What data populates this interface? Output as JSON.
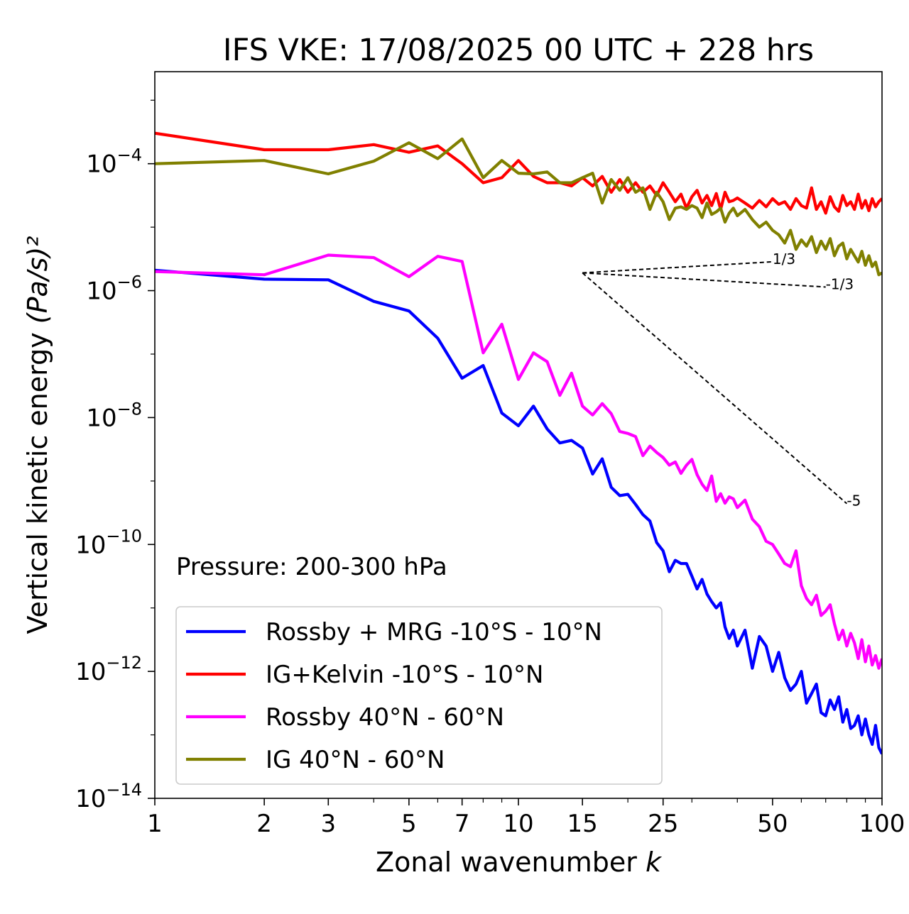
{
  "chart_data": {
    "type": "line",
    "title": "IFS VKE: 17/08/2025 00 UTC + 228 hrs",
    "xlabel": "Zonal wavenumber",
    "xlabel_var": "k",
    "ylabel": "Vertical kinetic energy",
    "ylabel_units": "(Pa/s)²",
    "xscale": "log",
    "yscale": "log",
    "xlim": [
      1,
      100
    ],
    "ylim_exp": [
      -14,
      -2.55
    ],
    "x_ticks": [
      1,
      2,
      3,
      5,
      7,
      10,
      15,
      25,
      50,
      100
    ],
    "x_tick_labels": [
      "1",
      "2",
      "3",
      "5",
      "7",
      "10",
      "15",
      "25",
      "50",
      "100"
    ],
    "y_ticks_exp": [
      -14,
      -12,
      -10,
      -8,
      -6,
      -4
    ],
    "y_tick_labels": [
      "10^-14",
      "10^-12",
      "10^-10",
      "10^-8",
      "10^-6",
      "10^-4"
    ],
    "annotation": "Pressure: 200-300 hPa",
    "legend_position": "lower-left",
    "series": [
      {
        "name": "Rossby + MRG -10°S - 10°N",
        "color": "#0000ff",
        "x": [
          1,
          2,
          3,
          4,
          5,
          6,
          7,
          8,
          9,
          10,
          11,
          12,
          13,
          14,
          15,
          16,
          17,
          18,
          19,
          20,
          21,
          22,
          23,
          24,
          25,
          26,
          27,
          28,
          29,
          30,
          31,
          32,
          33,
          34,
          35,
          36,
          37,
          38,
          39,
          40,
          42,
          44,
          46,
          48,
          50,
          52,
          54,
          56,
          58,
          60,
          62,
          64,
          66,
          68,
          70,
          72,
          74,
          76,
          78,
          80,
          82,
          84,
          86,
          88,
          90,
          92,
          94,
          96,
          98,
          100
        ],
        "log10_y": [
          -5.68,
          -5.82,
          -5.83,
          -6.17,
          -6.32,
          -6.75,
          -7.38,
          -7.18,
          -7.93,
          -8.13,
          -7.82,
          -8.18,
          -8.4,
          -8.36,
          -8.48,
          -8.89,
          -8.65,
          -9.1,
          -9.23,
          -9.21,
          -9.37,
          -9.53,
          -9.63,
          -9.97,
          -10.1,
          -10.43,
          -10.25,
          -10.3,
          -10.3,
          -10.5,
          -10.7,
          -10.55,
          -10.78,
          -10.9,
          -11.0,
          -10.92,
          -11.3,
          -11.48,
          -11.35,
          -11.6,
          -11.35,
          -11.95,
          -11.45,
          -11.6,
          -12.0,
          -11.7,
          -12.1,
          -12.3,
          -12.2,
          -12.0,
          -12.5,
          -12.35,
          -12.2,
          -12.65,
          -12.7,
          -12.45,
          -12.6,
          -12.4,
          -12.8,
          -12.6,
          -12.9,
          -12.85,
          -12.7,
          -13.0,
          -12.75,
          -13.0,
          -13.15,
          -12.85,
          -13.2,
          -13.3
        ]
      },
      {
        "name": "IG+Kelvin -10°S - 10°N",
        "color": "#ff0000",
        "x": [
          1,
          2,
          3,
          4,
          5,
          6,
          7,
          8,
          9,
          10,
          11,
          12,
          13,
          14,
          15,
          16,
          17,
          18,
          19,
          20,
          21,
          22,
          23,
          24,
          25,
          26,
          27,
          28,
          29,
          30,
          31,
          32,
          33,
          34,
          35,
          36,
          37,
          38,
          39,
          40,
          42,
          44,
          46,
          48,
          50,
          52,
          54,
          56,
          58,
          60,
          62,
          64,
          66,
          68,
          70,
          72,
          74,
          76,
          78,
          80,
          82,
          84,
          86,
          88,
          90,
          92,
          94,
          96,
          98,
          100
        ],
        "log10_y": [
          -3.52,
          -3.78,
          -3.78,
          -3.7,
          -3.82,
          -3.72,
          -4.0,
          -4.3,
          -4.22,
          -3.95,
          -4.2,
          -4.3,
          -4.3,
          -4.35,
          -4.22,
          -4.35,
          -4.2,
          -4.45,
          -4.25,
          -4.45,
          -4.3,
          -4.45,
          -4.35,
          -4.5,
          -4.3,
          -4.45,
          -4.6,
          -4.48,
          -4.7,
          -4.52,
          -4.42,
          -4.62,
          -4.5,
          -4.66,
          -4.47,
          -4.72,
          -4.45,
          -4.6,
          -4.58,
          -4.54,
          -4.62,
          -4.7,
          -4.58,
          -4.68,
          -4.55,
          -4.64,
          -4.6,
          -4.72,
          -4.55,
          -4.66,
          -4.7,
          -4.38,
          -4.72,
          -4.6,
          -4.78,
          -4.52,
          -4.68,
          -4.75,
          -4.5,
          -4.66,
          -4.6,
          -4.72,
          -4.48,
          -4.7,
          -4.58,
          -4.74,
          -4.55,
          -4.68,
          -4.6,
          -4.55
        ]
      },
      {
        "name": "Rossby 40°N - 60°N",
        "color": "#ff00ff",
        "x": [
          1,
          2,
          3,
          4,
          5,
          6,
          7,
          8,
          9,
          10,
          11,
          12,
          13,
          14,
          15,
          16,
          17,
          18,
          19,
          20,
          21,
          22,
          23,
          24,
          25,
          26,
          27,
          28,
          29,
          30,
          31,
          32,
          33,
          34,
          35,
          36,
          37,
          38,
          39,
          40,
          42,
          44,
          46,
          48,
          50,
          52,
          54,
          56,
          58,
          60,
          62,
          64,
          66,
          68,
          70,
          72,
          74,
          76,
          78,
          80,
          82,
          84,
          86,
          88,
          90,
          92,
          94,
          96,
          98,
          100
        ],
        "log10_y": [
          -5.7,
          -5.75,
          -5.44,
          -5.48,
          -5.78,
          -5.46,
          -5.54,
          -6.98,
          -6.53,
          -7.4,
          -6.98,
          -7.12,
          -7.65,
          -7.3,
          -7.82,
          -7.96,
          -7.78,
          -7.94,
          -8.22,
          -8.25,
          -8.3,
          -8.6,
          -8.45,
          -8.55,
          -8.63,
          -8.75,
          -8.7,
          -8.88,
          -8.75,
          -8.66,
          -8.9,
          -9.05,
          -9.15,
          -8.92,
          -9.32,
          -9.2,
          -9.35,
          -9.25,
          -9.28,
          -9.42,
          -9.3,
          -9.6,
          -9.72,
          -9.95,
          -10.0,
          -10.15,
          -10.3,
          -10.35,
          -10.1,
          -10.65,
          -10.85,
          -10.95,
          -10.8,
          -11.12,
          -11.05,
          -10.95,
          -11.25,
          -11.5,
          -11.35,
          -11.6,
          -11.4,
          -11.55,
          -11.8,
          -11.5,
          -11.85,
          -11.6,
          -11.9,
          -11.75,
          -11.95,
          -11.8
        ]
      },
      {
        "name": "IG 40°N - 60°N",
        "color": "#808000",
        "x": [
          1,
          2,
          3,
          4,
          5,
          6,
          7,
          8,
          9,
          10,
          11,
          12,
          13,
          14,
          15,
          16,
          17,
          18,
          19,
          20,
          21,
          22,
          23,
          24,
          25,
          26,
          27,
          28,
          29,
          30,
          31,
          32,
          33,
          34,
          35,
          36,
          37,
          38,
          39,
          40,
          42,
          44,
          46,
          48,
          50,
          52,
          54,
          56,
          58,
          60,
          62,
          64,
          66,
          68,
          70,
          72,
          74,
          76,
          78,
          80,
          82,
          84,
          86,
          88,
          90,
          92,
          94,
          96,
          98,
          100
        ],
        "log10_y": [
          -4.0,
          -3.95,
          -4.16,
          -3.96,
          -3.67,
          -3.92,
          -3.61,
          -4.22,
          -3.95,
          -4.15,
          -4.16,
          -4.13,
          -4.3,
          -4.3,
          -4.22,
          -4.15,
          -4.62,
          -4.25,
          -4.42,
          -4.22,
          -4.45,
          -4.38,
          -4.72,
          -4.45,
          -4.6,
          -4.88,
          -4.7,
          -4.68,
          -4.72,
          -4.66,
          -4.7,
          -4.85,
          -4.62,
          -4.8,
          -4.76,
          -4.7,
          -4.92,
          -4.78,
          -4.7,
          -4.82,
          -4.72,
          -4.88,
          -5.0,
          -4.92,
          -5.05,
          -5.12,
          -5.25,
          -5.05,
          -5.35,
          -5.2,
          -5.3,
          -5.15,
          -5.4,
          -5.22,
          -5.35,
          -5.18,
          -5.45,
          -5.3,
          -5.25,
          -5.5,
          -5.35,
          -5.45,
          -5.55,
          -5.38,
          -5.6,
          -5.45,
          -5.62,
          -5.55,
          -5.75,
          -5.72
        ]
      }
    ],
    "reference_slopes": [
      {
        "label": "1/3",
        "slope": 0.3333,
        "x_start": 15,
        "x_end": 50,
        "log10_y_start": -5.72
      },
      {
        "label": "-1/3",
        "slope": -0.3333,
        "x_start": 15,
        "x_end": 70,
        "log10_y_start": -5.72
      },
      {
        "label": "-5",
        "slope": -5,
        "x_start": 15,
        "x_end": 80,
        "log10_y_start": -5.72
      }
    ]
  }
}
